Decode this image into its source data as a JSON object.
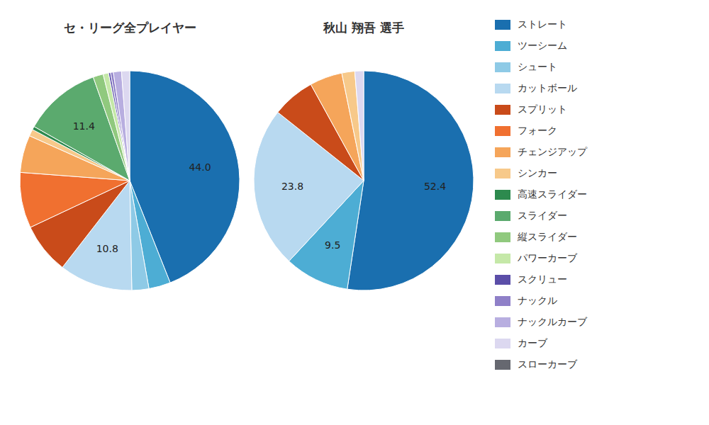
{
  "chart_data": [
    {
      "type": "pie",
      "title": "セ・リーグ全プレイヤー",
      "categories": [
        "ストレート",
        "ツーシーム",
        "シュート",
        "カットボール",
        "スプリット",
        "フォーク",
        "チェンジアップ",
        "シンカー",
        "高速スライダー",
        "スライダー",
        "縦スライダー",
        "パワーカーブ",
        "スクリュー",
        "ナックル",
        "ナックルカーブ",
        "カーブ",
        "スローカーブ"
      ],
      "values": [
        44.0,
        3.2,
        2.5,
        10.8,
        7.5,
        8.2,
        5.5,
        1.0,
        0.5,
        11.4,
        1.5,
        0.8,
        0.3,
        0.4,
        1.2,
        1.2,
        0.0
      ],
      "value_labels": [
        "44.0",
        null,
        null,
        "10.8",
        null,
        null,
        null,
        null,
        null,
        "11.4",
        null,
        null,
        null,
        null,
        null,
        null,
        null
      ],
      "colors": [
        "#1a6faf",
        "#4dadd4",
        "#8ecae6",
        "#b8d9f0",
        "#c94b1a",
        "#f07030",
        "#f5a55a",
        "#f7c98a",
        "#2d8a4e",
        "#5baa6e",
        "#90c97e",
        "#c5e8a8",
        "#5b4ea8",
        "#8f80c8",
        "#b8aee0",
        "#dcd8f0",
        "#666870"
      ],
      "data_labels": true,
      "legend": "right"
    },
    {
      "type": "pie",
      "title": "秋山 翔吾 選手",
      "categories": [
        "ストレート",
        "ツーシーム",
        "シュート",
        "カットボール",
        "スプリット",
        "フォーク",
        "チェンジアップ",
        "シンカー",
        "高速スライダー",
        "スライダー",
        "縦スライダー",
        "パワーカーブ",
        "スクリュー",
        "ナックル",
        "ナックルカーブ",
        "カーブ",
        "スローカーブ"
      ],
      "values": [
        52.4,
        9.5,
        0.0,
        23.8,
        6.3,
        0.0,
        4.8,
        1.9,
        0.0,
        0.0,
        0.0,
        0.0,
        0.0,
        0.0,
        0.0,
        1.3,
        0.0
      ],
      "value_labels": [
        "52.4",
        "9.5",
        null,
        "23.8",
        null,
        null,
        null,
        null,
        null,
        null,
        null,
        null,
        null,
        null,
        null,
        null,
        null
      ],
      "colors": [
        "#1a6faf",
        "#4dadd4",
        "#8ecae6",
        "#b8d9f0",
        "#c94b1a",
        "#f07030",
        "#f5a55a",
        "#f7c98a",
        "#2d8a4e",
        "#5baa6e",
        "#90c97e",
        "#c5e8a8",
        "#5b4ea8",
        "#8f80c8",
        "#b8aee0",
        "#dcd8f0",
        "#666870"
      ],
      "data_labels": true,
      "legend": "right"
    }
  ]
}
